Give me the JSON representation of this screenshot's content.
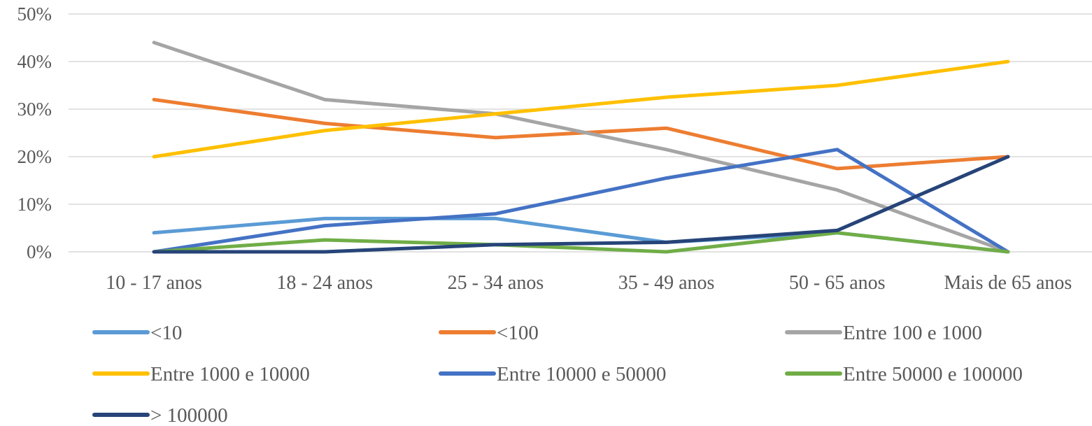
{
  "chart_data": {
    "type": "line",
    "categories": [
      "10 - 17 anos",
      "18 - 24 anos",
      "25 - 34 anos",
      "35 - 49 anos",
      "50 - 65 anos",
      "Mais de 65 anos"
    ],
    "y_ticks": [
      "0%",
      "10%",
      "20%",
      "30%",
      "40%",
      "50%"
    ],
    "ylim": [
      0,
      50
    ],
    "grid": true,
    "legend_position": "bottom",
    "series": [
      {
        "name": "<10",
        "color": "#5B9BD5",
        "values": [
          4,
          7,
          7,
          2,
          4,
          0
        ]
      },
      {
        "name": "<100",
        "color": "#ED7D31",
        "values": [
          32,
          27,
          24,
          26,
          17.5,
          20
        ]
      },
      {
        "name": "Entre 100 e 1000",
        "color": "#A5A5A5",
        "values": [
          44,
          32,
          29,
          21.5,
          13,
          0
        ]
      },
      {
        "name": "Entre 1000 e 10000",
        "color": "#FFC000",
        "values": [
          20,
          25.5,
          29,
          32.5,
          35,
          40
        ]
      },
      {
        "name": "Entre 10000 e 50000",
        "color": "#4472C4",
        "values": [
          0,
          5.5,
          8,
          15.5,
          21.5,
          0
        ]
      },
      {
        "name": "Entre 50000 e 100000",
        "color": "#70AD47",
        "values": [
          0,
          2.5,
          1.5,
          0,
          4,
          0
        ]
      },
      {
        "name": "> 100000",
        "color": "#264478",
        "values": [
          0,
          0,
          1.5,
          2,
          4.5,
          20
        ]
      }
    ]
  }
}
